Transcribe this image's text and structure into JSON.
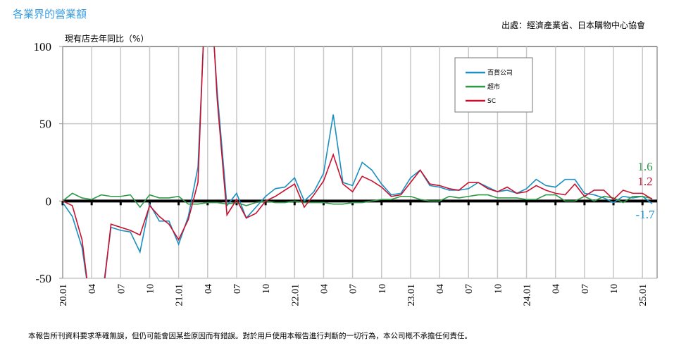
{
  "header": {
    "title": "各業界的營業額",
    "source": "出處：經濟產業省、日本購物中心協會",
    "ylabel": "現有店去年同比（%）"
  },
  "footer": "本報告所刊資料要求準確無誤，但仍可能會因某些原因而有錯誤。對於用戶使用本報告進行判斷的一切行為，本公司概不承擔任何責任。",
  "chart_data": {
    "type": "line",
    "title": "各業界的營業額",
    "ylabel": "現有店去年同比（%）",
    "ylim": [
      -50,
      100
    ],
    "yticks": [
      100,
      50,
      0,
      -50
    ],
    "ytick_labels": [
      "100",
      "50",
      "0",
      "-50"
    ],
    "x_start": "20.01",
    "x_count": 62,
    "xtick_labels": [
      "20.01",
      "04",
      "07",
      "10",
      "21.01",
      "04",
      "07",
      "10",
      "22.01",
      "04",
      "07",
      "10",
      "23.01",
      "04",
      "07",
      "10",
      "24.01",
      "04",
      "07",
      "10",
      "25.01"
    ],
    "grid": true,
    "legend_position": "top-center",
    "series": [
      {
        "name": "百貨公司",
        "color": "#1a8fc0",
        "end_label": "-1.7",
        "values": [
          -1,
          -10,
          -30,
          -73,
          -66,
          -17,
          -19,
          -20,
          -33,
          -2,
          -13,
          -13,
          -28,
          -10,
          22,
          163,
          70,
          -3,
          5,
          -11,
          -4,
          3,
          8,
          9,
          15,
          0,
          6,
          18,
          56,
          12,
          10,
          25,
          20,
          11,
          4,
          5,
          15,
          20,
          10,
          9,
          7,
          7,
          8,
          12,
          9,
          6,
          7,
          5,
          8,
          14,
          10,
          9,
          14,
          14,
          5,
          4,
          2,
          -1,
          3,
          2,
          3,
          -1.7
        ]
      },
      {
        "name": "超市",
        "color": "#2e9a48",
        "end_label": "1.6",
        "values": [
          0,
          5,
          2,
          1,
          4,
          3,
          3,
          4,
          -4,
          4,
          2,
          2,
          3,
          -2,
          -2,
          -1,
          -1,
          -2,
          -1,
          -3,
          -1,
          0,
          -1,
          -1,
          0,
          -1,
          -1,
          -1,
          -2,
          -2,
          -1,
          -1,
          0,
          1,
          1,
          3,
          3,
          1,
          0,
          0,
          3,
          2,
          3,
          4,
          4,
          2,
          2,
          2,
          1,
          1,
          4,
          4,
          0,
          0,
          3,
          0,
          3,
          2,
          -1,
          3,
          3,
          1.6
        ]
      },
      {
        "name": "SC",
        "color": "#c8102e",
        "end_label": "1.2",
        "values": [
          0,
          -3,
          -25,
          -75,
          -70,
          -15,
          -17,
          -19,
          -22,
          -3,
          -10,
          -15,
          -25,
          -12,
          12,
          175,
          65,
          -9,
          1,
          -11,
          -8,
          0,
          3,
          7,
          11,
          -4,
          4,
          13,
          30,
          11,
          6,
          16,
          13,
          9,
          3,
          4,
          12,
          20,
          11,
          10,
          8,
          7,
          12,
          12,
          8,
          6,
          9,
          5,
          6,
          10,
          7,
          5,
          4,
          11,
          3,
          7,
          7,
          1,
          7,
          5,
          5,
          1.2
        ]
      }
    ]
  }
}
